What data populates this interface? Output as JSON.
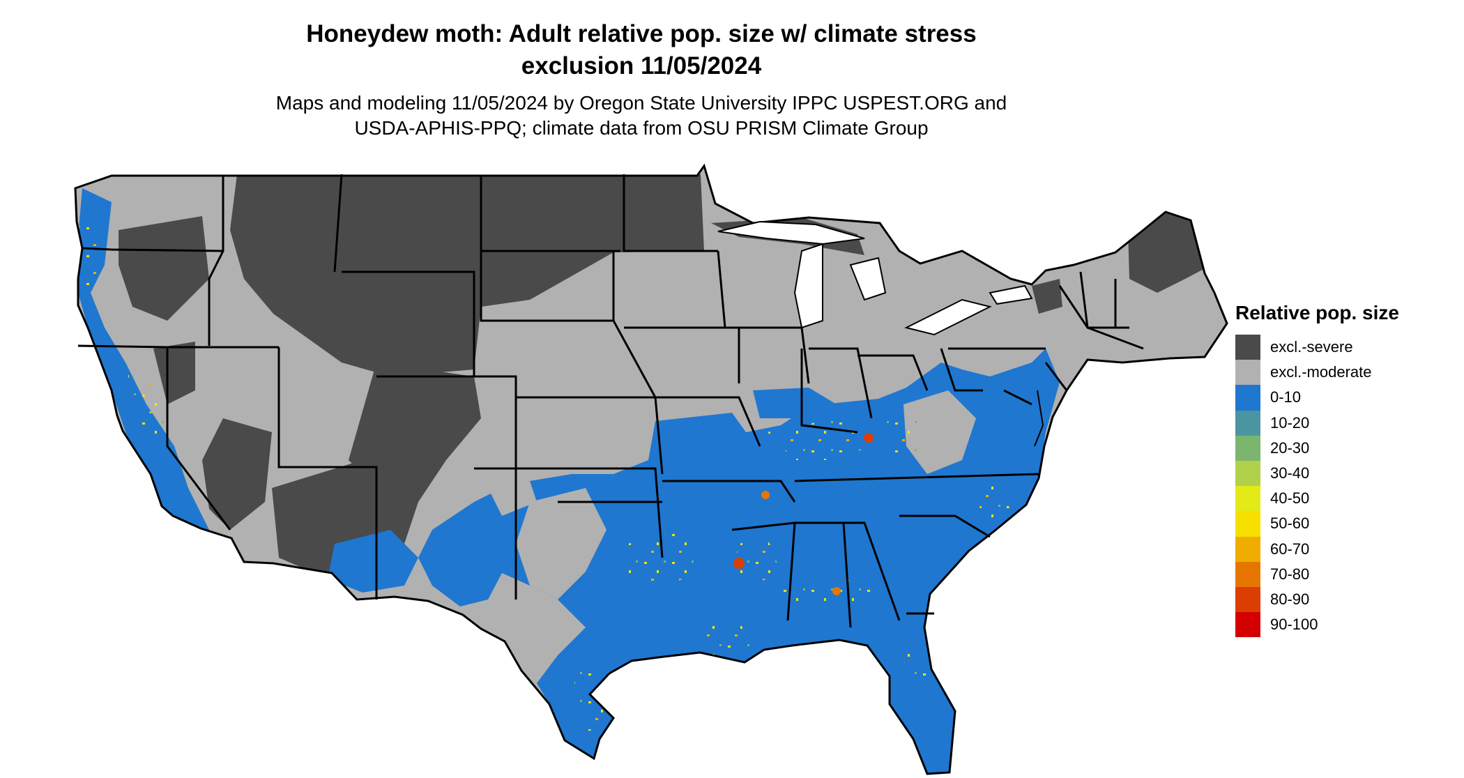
{
  "title": {
    "line1": "Honeydew moth: Adult relative pop. size w/ climate stress",
    "line2": "exclusion 11/05/2024"
  },
  "subtitle": {
    "line1": "Maps and modeling 11/05/2024 by Oregon State University IPPC USPEST.ORG and",
    "line2": "USDA-APHIS-PPQ; climate data from OSU PRISM Climate Group"
  },
  "legend": {
    "title": "Relative pop. size",
    "items": [
      {
        "label": "excl.-severe",
        "color": "#4a4a4a"
      },
      {
        "label": "excl.-moderate",
        "color": "#b1b1b1"
      },
      {
        "label": "0-10",
        "color": "#1f77d0"
      },
      {
        "label": "10-20",
        "color": "#4b95a3"
      },
      {
        "label": "20-30",
        "color": "#7cb56e"
      },
      {
        "label": "30-40",
        "color": "#b2d14a"
      },
      {
        "label": "40-50",
        "color": "#e3ea18"
      },
      {
        "label": "50-60",
        "color": "#f7e000"
      },
      {
        "label": "60-70",
        "color": "#f0ad00"
      },
      {
        "label": "70-80",
        "color": "#e67600"
      },
      {
        "label": "80-90",
        "color": "#dc3d00"
      },
      {
        "label": "90-100",
        "color": "#d40000"
      }
    ]
  },
  "map": {
    "region": "contiguous-united-states",
    "colors": {
      "severe": "#4a4a4a",
      "moderate": "#b1b1b1",
      "low": "#1f77d0",
      "mid": "#f7e000",
      "high": "#dc3d00",
      "border": "#000000"
    }
  }
}
